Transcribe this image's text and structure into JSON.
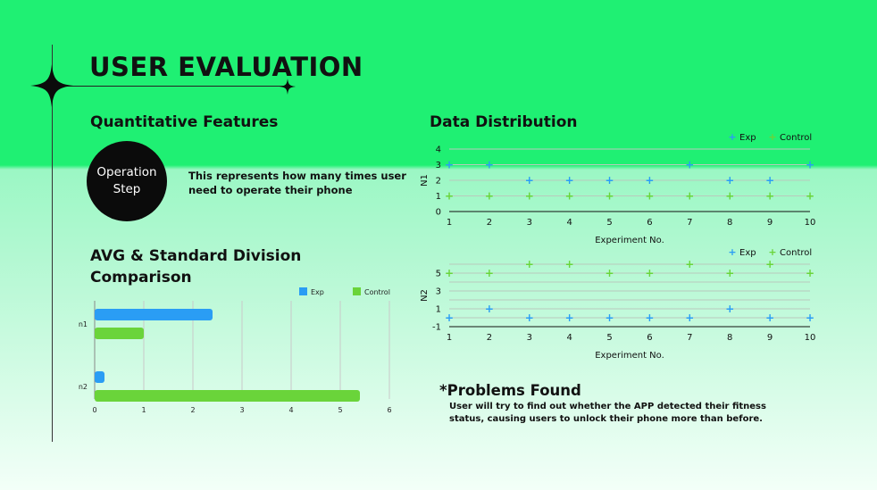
{
  "page": {
    "title": "USER EVALUATION",
    "quant_heading": "Quantitative Features",
    "circle_line1": "Operation",
    "circle_line2": "Step",
    "circle_desc": "This represents how many times user need to operate their phone",
    "avg_heading_line1": "AVG & Standard Division",
    "avg_heading_line2": "Comparison",
    "dist_heading": "Data Distribution",
    "problems_title": "*Problems Found",
    "problems_text": "User will try to find out whether the APP detected their fitness status, causing users to unlock their phone more than before."
  },
  "colors": {
    "exp": "#2a9df4",
    "control": "#6ad43a",
    "bg_top": "#1ff073",
    "bg_bottom": "#f3fff8",
    "circle": "#0b0b0b"
  },
  "chart_data": [
    {
      "type": "bar",
      "orientation": "horizontal",
      "title": "",
      "categories": [
        "n1",
        "n2"
      ],
      "series": [
        {
          "name": "Exp",
          "values": [
            2.4,
            0.2
          ]
        },
        {
          "name": "Control",
          "values": [
            1.0,
            5.4
          ]
        }
      ],
      "xlim": [
        0,
        6
      ],
      "xticks": [
        0,
        1,
        2,
        3,
        4,
        5,
        6
      ],
      "grid": true,
      "legend": "top-right"
    },
    {
      "type": "scatter",
      "title": "",
      "xlabel": "Experiment No.",
      "ylabel": "N1",
      "x": [
        1,
        2,
        3,
        4,
        5,
        6,
        7,
        8,
        9,
        10
      ],
      "series": [
        {
          "name": "Exp",
          "values": [
            3,
            3,
            2,
            2,
            2,
            2,
            3,
            2,
            2,
            3
          ]
        },
        {
          "name": "Control",
          "values": [
            1,
            1,
            1,
            1,
            1,
            1,
            1,
            1,
            1,
            1
          ]
        }
      ],
      "ylim": [
        0,
        4
      ],
      "yticks": [
        0,
        1,
        2,
        3,
        4
      ],
      "grid": true,
      "legend": "top-right"
    },
    {
      "type": "scatter",
      "title": "",
      "xlabel": "Experiment No.",
      "ylabel": "N2",
      "x": [
        1,
        2,
        3,
        4,
        5,
        6,
        7,
        8,
        9,
        10
      ],
      "series": [
        {
          "name": "Exp",
          "values": [
            0,
            1,
            0,
            0,
            0,
            0,
            0,
            1,
            0,
            0
          ]
        },
        {
          "name": "Control",
          "values": [
            5,
            5,
            6,
            6,
            5,
            5,
            6,
            5,
            6,
            5
          ]
        }
      ],
      "ylim": [
        -1,
        6
      ],
      "yticks": [
        -1,
        1,
        3,
        5
      ],
      "grid": true,
      "legend": "top-right"
    }
  ]
}
